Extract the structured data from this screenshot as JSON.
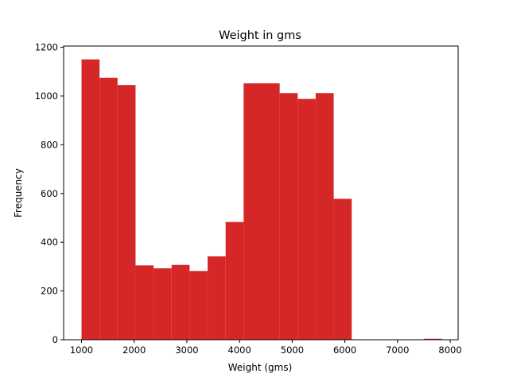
{
  "chart_data": {
    "type": "bar",
    "title": "Weight in gms",
    "xlabel": "Weight (gms)",
    "ylabel": "Frequency",
    "xlim": [
      660,
      8150
    ],
    "ylim": [
      0,
      1205
    ],
    "xticks": [
      1000,
      2000,
      3000,
      4000,
      5000,
      6000,
      7000,
      8000
    ],
    "yticks": [
      0,
      200,
      400,
      600,
      800,
      1000,
      1200
    ],
    "grid": false,
    "bar_color": "#d62728",
    "bins": [
      {
        "x0": 1000,
        "x1": 1342,
        "value": 1150
      },
      {
        "x0": 1342,
        "x1": 1684,
        "value": 1075
      },
      {
        "x0": 1684,
        "x1": 2026,
        "value": 1045
      },
      {
        "x0": 2026,
        "x1": 2368,
        "value": 305
      },
      {
        "x0": 2368,
        "x1": 2710,
        "value": 293
      },
      {
        "x0": 2710,
        "x1": 3052,
        "value": 307
      },
      {
        "x0": 3052,
        "x1": 3394,
        "value": 282
      },
      {
        "x0": 3394,
        "x1": 3736,
        "value": 342
      },
      {
        "x0": 3736,
        "x1": 4078,
        "value": 483
      },
      {
        "x0": 4078,
        "x1": 4420,
        "value": 1052
      },
      {
        "x0": 4420,
        "x1": 4762,
        "value": 1052
      },
      {
        "x0": 4762,
        "x1": 5104,
        "value": 1012
      },
      {
        "x0": 5104,
        "x1": 5446,
        "value": 988
      },
      {
        "x0": 5446,
        "x1": 5788,
        "value": 1012
      },
      {
        "x0": 5788,
        "x1": 6130,
        "value": 578
      },
      {
        "x0": 6130,
        "x1": 6472,
        "value": 0
      },
      {
        "x0": 6472,
        "x1": 6814,
        "value": 0
      },
      {
        "x0": 6814,
        "x1": 7156,
        "value": 0
      },
      {
        "x0": 7156,
        "x1": 7498,
        "value": 0
      },
      {
        "x0": 7498,
        "x1": 7840,
        "value": 4
      }
    ]
  }
}
